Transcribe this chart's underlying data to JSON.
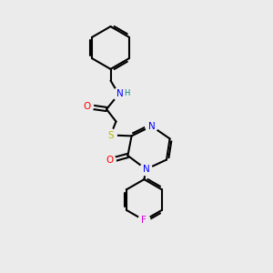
{
  "bg_color": "#ebebeb",
  "bond_color": "#000000",
  "bond_lw": 1.5,
  "atom_colors": {
    "N": "#0000ff",
    "O": "#ff0000",
    "S": "#b8b800",
    "F": "#dd00dd",
    "H": "#008080",
    "C": "#000000"
  },
  "font_size": 7.5,
  "font_size_small": 6.5
}
